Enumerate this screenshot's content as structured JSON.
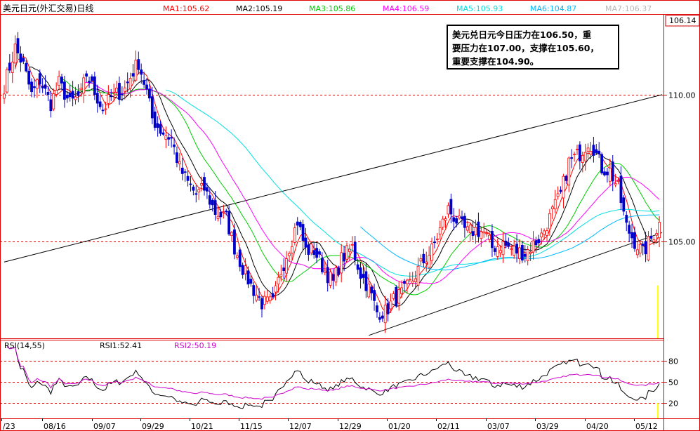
{
  "chart_data": [
    {
      "type": "candlestick",
      "title": "美元日元(外汇交易)日线",
      "x_tick_labels": [
        "/23",
        "08/16",
        "09/07",
        "09/29",
        "10/21",
        "11/15",
        "12/07",
        "12/29",
        "01/20",
        "02/11",
        "03/07",
        "03/29",
        "04/20",
        "05/12"
      ],
      "y_tick_labels": [
        "106.14",
        "110.00",
        "105.00"
      ],
      "price_levels": [
        110.0,
        105.0
      ],
      "ylim": [
        101.7,
        112.7
      ],
      "moving_averages": [
        {
          "name": "MA1",
          "label": "MA1:105.62",
          "value": 105.62,
          "color": "#ff0000"
        },
        {
          "name": "MA2",
          "label": "MA2:105.19",
          "value": 105.19,
          "color": "#000000"
        },
        {
          "name": "MA3",
          "label": "MA3:105.86",
          "value": 105.86,
          "color": "#00cc00"
        },
        {
          "name": "MA4",
          "label": "MA4:106.59",
          "value": 106.59,
          "color": "#ff00ff"
        },
        {
          "name": "MA5",
          "label": "MA5:105.93",
          "value": 105.93,
          "color": "#00e0e0"
        },
        {
          "name": "MA6",
          "label": "MA6:104.87",
          "value": 104.87,
          "color": "#00b8ff"
        },
        {
          "name": "MA7",
          "label": "MA7:106.37",
          "value": 106.37,
          "color": "#b8b8b8"
        }
      ],
      "close_path": [
        [
          0,
          110.3
        ],
        [
          4,
          111.6
        ],
        [
          7,
          111.0
        ],
        [
          10,
          110.0
        ],
        [
          13,
          110.5
        ],
        [
          17,
          109.7
        ],
        [
          20,
          110.4
        ],
        [
          24,
          109.7
        ],
        [
          28,
          110.0
        ],
        [
          30,
          110.7
        ],
        [
          33,
          110.1
        ],
        [
          36,
          109.5
        ],
        [
          39,
          109.9
        ],
        [
          44,
          110.2
        ],
        [
          47,
          110.8
        ],
        [
          49,
          111.1
        ],
        [
          52,
          110.1
        ],
        [
          54,
          109.2
        ],
        [
          57,
          108.8
        ],
        [
          61,
          108.5
        ],
        [
          64,
          107.5
        ],
        [
          67,
          107.0
        ],
        [
          70,
          106.6
        ],
        [
          73,
          106.8
        ],
        [
          77,
          106.0
        ],
        [
          81,
          105.8
        ],
        [
          84,
          104.8
        ],
        [
          87,
          104.1
        ],
        [
          90,
          103.5
        ],
        [
          94,
          102.9
        ],
        [
          98,
          102.9
        ],
        [
          101,
          104.0
        ],
        [
          105,
          105.1
        ],
        [
          107,
          105.7
        ],
        [
          110,
          104.7
        ],
        [
          113,
          104.7
        ],
        [
          117,
          104.0
        ],
        [
          120,
          103.6
        ],
        [
          123,
          104.4
        ],
        [
          127,
          104.8
        ],
        [
          130,
          103.9
        ],
        [
          133,
          103.4
        ],
        [
          136,
          102.6
        ],
        [
          139,
          102.6
        ],
        [
          142,
          103.0
        ],
        [
          146,
          103.3
        ],
        [
          149,
          103.7
        ],
        [
          152,
          104.2
        ],
        [
          156,
          104.7
        ],
        [
          159,
          105.4
        ],
        [
          162,
          106.1
        ],
        [
          166,
          105.6
        ],
        [
          169,
          105.3
        ],
        [
          172,
          105.4
        ],
        [
          175,
          105.3
        ],
        [
          178,
          104.8
        ],
        [
          182,
          104.9
        ],
        [
          186,
          104.7
        ],
        [
          190,
          104.6
        ],
        [
          193,
          104.9
        ],
        [
          196,
          105.2
        ],
        [
          200,
          106.0
        ],
        [
          203,
          106.6
        ],
        [
          206,
          107.7
        ],
        [
          210,
          108.0
        ],
        [
          213,
          108.4
        ],
        [
          215,
          108.2
        ],
        [
          218,
          107.5
        ],
        [
          221,
          107.4
        ],
        [
          224,
          106.8
        ],
        [
          227,
          105.5
        ],
        [
          230,
          105.0
        ],
        [
          233,
          104.6
        ],
        [
          236,
          105.1
        ],
        [
          239,
          105.6
        ]
      ],
      "rsi": {
        "label": "RSI(14,55)",
        "rsi1_label": "RSI1:52.41",
        "rsi1": 52.41,
        "rsi2_label": "RSI2:50.19",
        "rsi2": 50.19,
        "levels": [
          80,
          50,
          20
        ],
        "level_labels": [
          "80",
          "50",
          "20"
        ]
      }
    }
  ],
  "annotation": {
    "line1": "美元兑日元今日压力在106.50，重",
    "line2": "要压力在107.00，支撑在105.60，",
    "line3": "重要支撑在104.90。"
  },
  "colors": {
    "candle_up": "#ff0000",
    "candle_down": "#0000cc",
    "level_line": "#cc0000",
    "rsi1": "#000000",
    "rsi2": "#cc00cc",
    "highlight_bar": "#ffff00"
  }
}
